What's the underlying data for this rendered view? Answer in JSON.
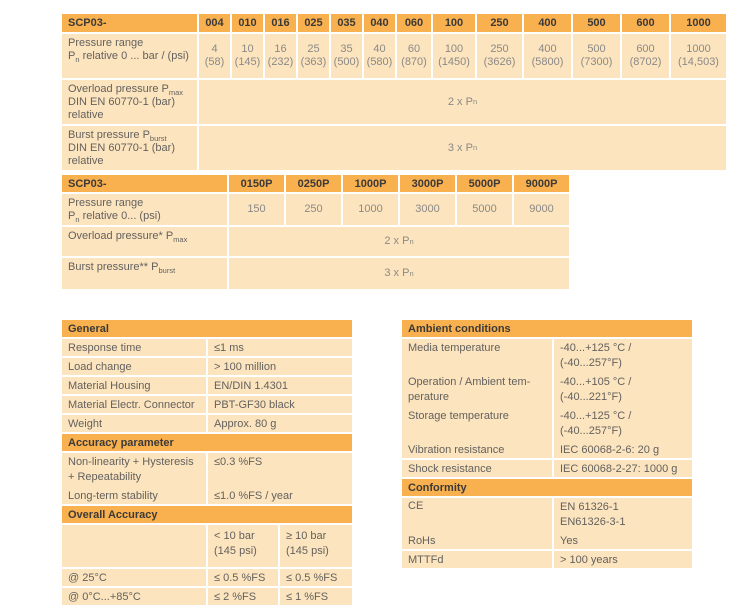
{
  "colors": {
    "header_orange": "#F9B04E",
    "row_cream": "#FCE4BE",
    "header_text": "#3B3A38",
    "label_text": "#63615E",
    "value_text": "#8B8987"
  },
  "bar_table": {
    "title": "SCP03-",
    "columns": [
      "004",
      "010",
      "016",
      "025",
      "035",
      "040",
      "060",
      "100",
      "250",
      "400",
      "500",
      "600",
      "1000"
    ],
    "pressure": {
      "label": [
        [
          "Pressure range"
        ],
        [
          "P",
          {
            "sub": "n"
          },
          " relative 0 ... bar / (psi)"
        ]
      ],
      "values": [
        [
          "4",
          "(58)"
        ],
        [
          "10",
          "(145)"
        ],
        [
          "16",
          "(232)"
        ],
        [
          "25",
          "(363)"
        ],
        [
          "35",
          "(500)"
        ],
        [
          "40",
          "(580)"
        ],
        [
          "60",
          "(870)"
        ],
        [
          "100",
          "(1450)"
        ],
        [
          "250",
          "(3626)"
        ],
        [
          "400",
          "(5800)"
        ],
        [
          "500",
          "(7300)"
        ],
        [
          "600",
          "(8702)"
        ],
        [
          "1000",
          "(14,503)"
        ]
      ]
    },
    "overload": {
      "label": [
        [
          "Overload pressure P",
          {
            "sub": "max"
          }
        ],
        [
          "DIN EN 60770-1 (bar)"
        ],
        [
          "relative"
        ]
      ],
      "value": [
        [
          "2 x P",
          {
            "sub": "n"
          }
        ]
      ]
    },
    "burst": {
      "label": [
        [
          "Burst pressure P",
          {
            "sub": "burst"
          }
        ],
        [
          "DIN EN 60770-1 (bar)"
        ],
        [
          "relative"
        ]
      ],
      "value": [
        [
          "3 x P",
          {
            "sub": "n"
          }
        ]
      ]
    }
  },
  "psi_table": {
    "title": "SCP03-",
    "columns": [
      "0150P",
      "0250P",
      "1000P",
      "3000P",
      "5000P",
      "9000P"
    ],
    "pressure": {
      "label": [
        [
          "Pressure range"
        ],
        [
          "P",
          {
            "sub": "n"
          },
          " relative 0... (psi)"
        ]
      ],
      "values": [
        "150",
        "250",
        "1000",
        "3000",
        "5000",
        "9000"
      ]
    },
    "overload": {
      "label": [
        [
          "Overload pressure* P",
          {
            "sub": "max"
          }
        ]
      ],
      "value": [
        [
          "2 x P",
          {
            "sub": "n"
          }
        ]
      ]
    },
    "burst": {
      "label": [
        [
          "Burst pressure** P",
          {
            "sub": "burst"
          }
        ]
      ],
      "value": [
        [
          "3 x P",
          {
            "sub": "n"
          }
        ]
      ]
    }
  },
  "general": {
    "title": "General",
    "rows": [
      {
        "label": "Response time",
        "value": "≤1 ms"
      },
      {
        "label": "Load change",
        "value": "> 100 million"
      },
      {
        "label": "Material Housing",
        "value": "EN/DIN 1.4301"
      },
      {
        "label": "Material Electr. Connector",
        "value": "PBT-GF30 black"
      },
      {
        "label": "Weight",
        "value": "Approx. 80 g"
      }
    ]
  },
  "accuracy": {
    "title": "Accuracy parameter",
    "rows": [
      {
        "label": "Non-linearity + Hysteresis\n+ Repeatability",
        "value": "≤0.3 %FS"
      },
      {
        "label": "Long-term stability",
        "value": "≤1.0 %FS / year"
      }
    ]
  },
  "overall": {
    "title": "Overall Accuracy",
    "col1_header": "< 10 bar\n(145 psi)",
    "col2_header": "≥ 10 bar\n(145 psi)",
    "rows": [
      {
        "label": "@ 25°C",
        "v1": "≤ 0.5 %FS",
        "v2": "≤ 0.5 %FS"
      },
      {
        "label": "@ 0°C...+85°C",
        "v1": "≤ 2 %FS",
        "v2": "≤ 1 %FS"
      }
    ]
  },
  "ambient": {
    "title": "Ambient conditions",
    "rows": [
      {
        "label": "Media temperature",
        "value": "-40...+125 °C /\n(-40...257°F)"
      },
      {
        "label": "Operation / Ambient tem-\nperature",
        "value": "-40...+105 °C /\n(-40...221°F)"
      },
      {
        "label": "Storage temperature",
        "value": "-40...+125 °C /\n(-40...257°F)"
      },
      {
        "label": "Vibration resistance",
        "value": "IEC 60068-2-6: 20 g"
      },
      {
        "label": "Shock resistance",
        "value": "IEC 60068-2-27: 1000 g"
      }
    ]
  },
  "conformity": {
    "title": "Conformity",
    "rows": [
      {
        "label": "CE",
        "value": "EN 61326-1\nEN61326-3-1"
      },
      {
        "label": "RoHs",
        "value": "Yes"
      },
      {
        "label": "MTTFd",
        "value": "> 100 years"
      }
    ]
  }
}
